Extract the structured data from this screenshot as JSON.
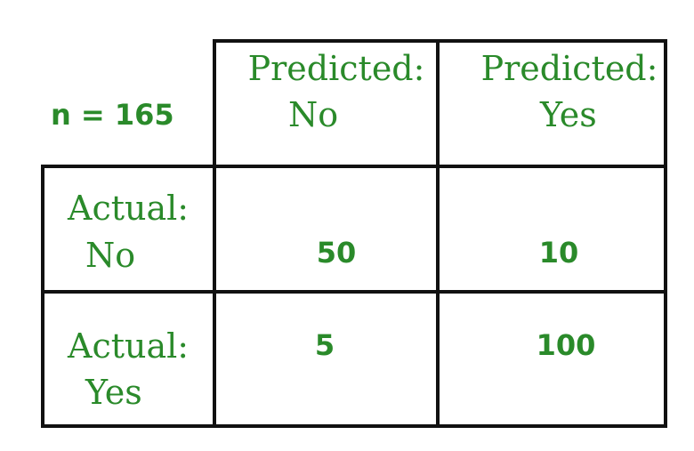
{
  "sample_label": "n  =  165",
  "columns": [
    {
      "line1": "Predicted:",
      "line2": "No"
    },
    {
      "line1": "Predicted:",
      "line2": "Yes"
    }
  ],
  "rows": [
    {
      "line1": "Actual:",
      "line2": "No",
      "values": [
        "50",
        "10"
      ]
    },
    {
      "line1": "Actual:",
      "line2": "Yes",
      "values": [
        "5",
        "100"
      ]
    }
  ],
  "colors": {
    "text": "#2a8a2a",
    "lines": "#111111"
  }
}
